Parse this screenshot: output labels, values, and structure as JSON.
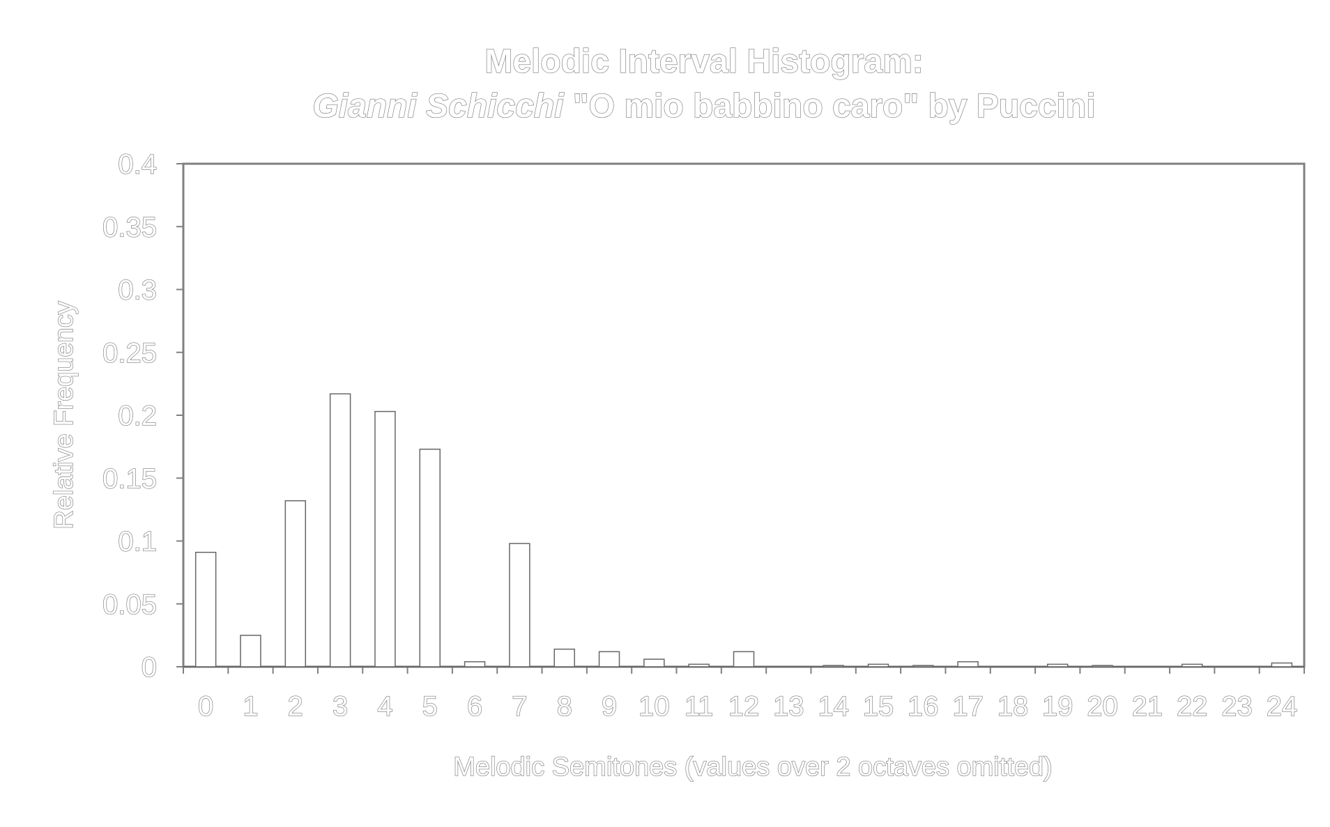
{
  "chart_data": {
    "type": "bar",
    "title_line1": "Melodic Interval Histogram:",
    "title_line2_italic": "Gianni Schicchi",
    "title_line2_rest": " \"O mio babbino caro\" by Puccini",
    "xlabel": "Melodic Semitones (values over 2 octaves omitted)",
    "ylabel": "Relative Frequency",
    "categories": [
      "0",
      "1",
      "2",
      "3",
      "4",
      "5",
      "6",
      "7",
      "8",
      "9",
      "10",
      "11",
      "12",
      "13",
      "14",
      "15",
      "16",
      "17",
      "18",
      "19",
      "20",
      "21",
      "22",
      "23",
      "24"
    ],
    "values": [
      0.091,
      0.025,
      0.132,
      0.217,
      0.203,
      0.173,
      0.004,
      0.098,
      0.014,
      0.012,
      0.006,
      0.002,
      0.012,
      0,
      0.001,
      0.002,
      0.001,
      0.004,
      0,
      0.002,
      0.001,
      0,
      0.002,
      0,
      0.003
    ],
    "yticks": [
      "0",
      "0.05",
      "0.1",
      "0.15",
      "0.2",
      "0.25",
      "0.3",
      "0.35",
      "0.4"
    ],
    "ylim": [
      0,
      0.4
    ],
    "grid": false,
    "colors": {
      "stroke": "#666666",
      "fill": "#ffffff",
      "frame": "#808080"
    }
  }
}
